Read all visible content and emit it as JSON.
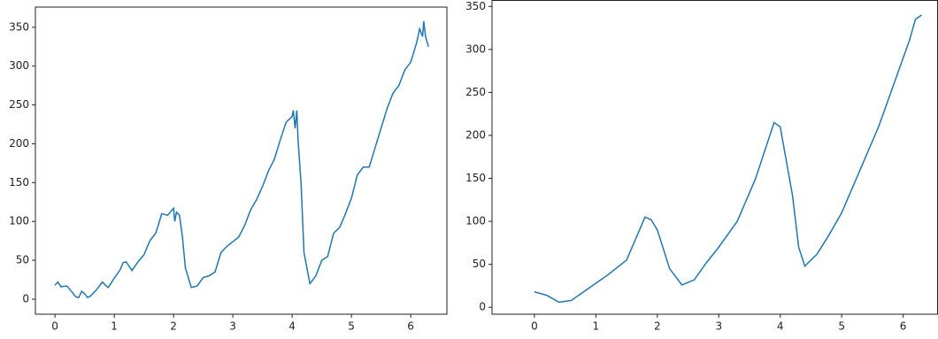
{
  "chart_data": [
    {
      "type": "line",
      "xlim": [
        -0.33,
        6.61
      ],
      "ylim": [
        -19.4,
        376
      ],
      "xticks": [
        0,
        1,
        2,
        3,
        4,
        5,
        6
      ],
      "yticks": [
        0,
        50,
        100,
        150,
        200,
        250,
        300,
        350
      ],
      "x": [
        0,
        0.05,
        0.1,
        0.2,
        0.3,
        0.35,
        0.4,
        0.45,
        0.5,
        0.55,
        0.6,
        0.7,
        0.8,
        0.85,
        0.9,
        1.0,
        1.1,
        1.15,
        1.2,
        1.3,
        1.4,
        1.5,
        1.6,
        1.7,
        1.75,
        1.8,
        1.9,
        2.0,
        2.02,
        2.05,
        2.1,
        2.15,
        2.2,
        2.3,
        2.4,
        2.5,
        2.6,
        2.7,
        2.8,
        2.9,
        3.0,
        3.1,
        3.2,
        3.3,
        3.4,
        3.5,
        3.6,
        3.7,
        3.8,
        3.9,
        4.0,
        4.02,
        4.05,
        4.08,
        4.1,
        4.15,
        4.2,
        4.3,
        4.4,
        4.5,
        4.6,
        4.7,
        4.8,
        4.9,
        5.0,
        5.1,
        5.2,
        5.3,
        5.4,
        5.5,
        5.6,
        5.7,
        5.8,
        5.9,
        6.0,
        6.1,
        6.15,
        6.2,
        6.22,
        6.25,
        6.3
      ],
      "series": [
        {
          "color": "#1f77b4",
          "values": [
            18,
            22,
            16,
            17,
            8,
            3,
            2,
            10,
            7,
            2,
            4,
            12,
            22,
            18,
            15,
            27,
            38,
            47,
            48,
            37,
            48,
            57,
            75,
            85,
            97,
            110,
            108,
            117,
            100,
            112,
            108,
            80,
            40,
            15,
            17,
            28,
            30,
            35,
            60,
            68,
            74,
            80,
            95,
            115,
            128,
            145,
            165,
            180,
            205,
            228,
            235,
            243,
            220,
            243,
            205,
            150,
            60,
            20,
            30,
            50,
            55,
            85,
            92,
            110,
            130,
            160,
            170,
            170,
            195,
            220,
            245,
            265,
            275,
            295,
            305,
            330,
            348,
            338,
            358,
            338,
            325
          ]
        }
      ]
    },
    {
      "type": "line",
      "xlim": [
        -0.69,
        6.56
      ],
      "ylim": [
        -8,
        357
      ],
      "xticks": [
        0,
        1,
        2,
        3,
        4,
        5,
        6
      ],
      "yticks": [
        0,
        50,
        100,
        150,
        200,
        250,
        300,
        350
      ],
      "x": [
        0,
        0.2,
        0.4,
        0.6,
        0.8,
        1.0,
        1.2,
        1.5,
        1.65,
        1.8,
        1.9,
        2.0,
        2.2,
        2.4,
        2.6,
        2.8,
        3.0,
        3.3,
        3.6,
        3.9,
        4.0,
        4.1,
        4.2,
        4.3,
        4.4,
        4.6,
        4.8,
        5.0,
        5.3,
        5.6,
        5.9,
        6.1,
        6.2,
        6.3
      ],
      "series": [
        {
          "color": "#1f77b4",
          "values": [
            18,
            14,
            6,
            8,
            18,
            28,
            38,
            55,
            80,
            105,
            102,
            90,
            45,
            26,
            32,
            52,
            70,
            100,
            150,
            215,
            210,
            170,
            130,
            70,
            48,
            62,
            85,
            110,
            160,
            210,
            270,
            310,
            335,
            340
          ]
        }
      ]
    }
  ]
}
